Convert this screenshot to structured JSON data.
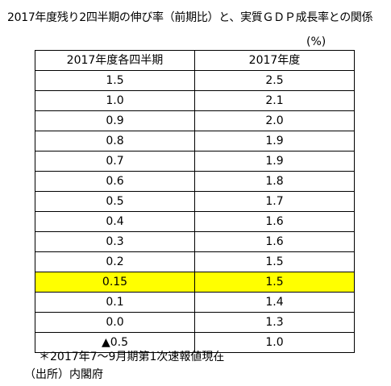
{
  "title": "2017年度残り2四半期の伸び率（前期比）と、実質ＧＤＰ成長率との関係",
  "unit": "(%)",
  "table": {
    "headers": [
      "2017年度各四半期",
      "2017年度"
    ],
    "rows": [
      [
        "1.5",
        "2.5"
      ],
      [
        "1.0",
        "2.1"
      ],
      [
        "0.9",
        "2.0"
      ],
      [
        "0.8",
        "1.9"
      ],
      [
        "0.7",
        "1.9"
      ],
      [
        "0.6",
        "1.8"
      ],
      [
        "0.5",
        "1.7"
      ],
      [
        "0.4",
        "1.6"
      ],
      [
        "0.3",
        "1.6"
      ],
      [
        "0.2",
        "1.5"
      ],
      [
        "0.15",
        "1.5"
      ],
      [
        "0.1",
        "1.4"
      ],
      [
        "0.0",
        "1.3"
      ],
      [
        "▲0.5",
        "1.0"
      ]
    ],
    "highlight_row_index": 10,
    "highlight_color": "#ffff00"
  },
  "note": "＊2017年7～9月期第1次速報値現在",
  "source": "（出所）内閣府"
}
